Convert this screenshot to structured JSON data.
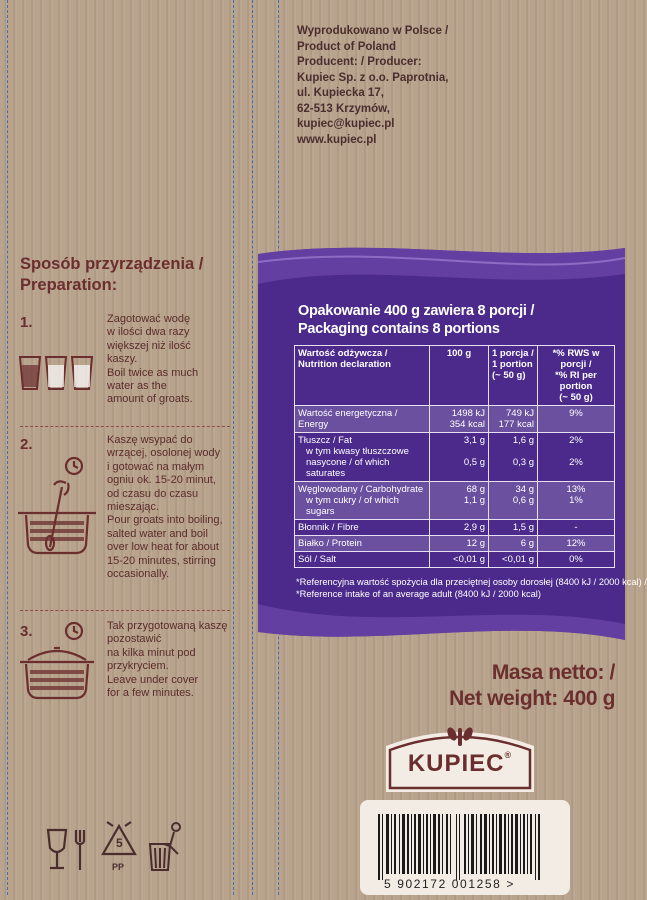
{
  "producer": {
    "lines": [
      "Wyprodukowano w Polsce /",
      "Product of Poland",
      "Producent: / Producer:",
      "Kupiec Sp. z o.o. Paprotnia,",
      "ul. Kupiecka 17,",
      "62-513 Krzymów,",
      "kupiec@kupiec.pl",
      "www.kupiec.pl"
    ]
  },
  "preparation": {
    "title_pl": "Sposób przyrządzenia /",
    "title_en": "Preparation:",
    "steps": [
      {
        "number": "1.",
        "text_pl": [
          "Zagotować wodę",
          "w ilości dwa razy",
          "większej niż ilość",
          "kaszy."
        ],
        "text_en": [
          "Boil twice as much",
          "water as the",
          "amount of groats."
        ],
        "icon": "three-glasses-icon"
      },
      {
        "number": "2.",
        "text_pl": [
          "Kaszę wsypać do",
          "wrzącej, osolonej wody",
          "i gotować na małym",
          "ogniu ok. 15-20 minut,",
          "od czasu do czasu",
          "mieszając."
        ],
        "text_en": [
          "Pour groats into boiling,",
          "salted water and boil",
          "over low heat for about",
          "15-20 minutes, stirring",
          "occasionally."
        ],
        "icon": "pot-stirring-icon"
      },
      {
        "number": "3.",
        "text_pl": [
          "Tak przygotowaną kaszę",
          "pozostawić",
          "na kilka minut pod",
          "przykryciem."
        ],
        "text_en": [
          "Leave under cover",
          "for a few minutes."
        ],
        "icon": "covered-pot-icon"
      }
    ]
  },
  "nutrition": {
    "title_line1": "Opakowanie 400 g zawiera 8 porcji  /",
    "title_line2": "Packaging contains 8 portions",
    "headers": {
      "col1": [
        "Wartość odżywcza /",
        "Nutrition declaration"
      ],
      "col2": [
        "100 g"
      ],
      "col3": [
        "1 porcja /",
        "1 portion",
        "(~ 50 g)"
      ],
      "col4": [
        "*% RWS w porcji /",
        "*% RI per portion",
        "(~ 50 g)"
      ]
    },
    "rows": [
      {
        "label": [
          "Wartość energetyczna /",
          "Energy"
        ],
        "v100": [
          "1498 kJ",
          "354 kcal"
        ],
        "vpor": [
          "749 kJ",
          "177 kcal"
        ],
        "ri": [
          "9%"
        ]
      },
      {
        "label": [
          "Tłuszcz / Fat",
          "w tym kwasy tłuszczowe",
          "nasycone / of which saturates"
        ],
        "v100": [
          "3,1 g",
          "",
          "0,5 g"
        ],
        "vpor": [
          "1,6 g",
          "",
          "0,3 g"
        ],
        "ri": [
          "2%",
          "",
          "2%"
        ]
      },
      {
        "label": [
          "Węglowodany / Carbohydrate",
          "w tym cukry / of which sugars"
        ],
        "v100": [
          "68 g",
          "1,1 g"
        ],
        "vpor": [
          "34 g",
          "0,6 g"
        ],
        "ri": [
          "13%",
          "1%"
        ]
      },
      {
        "label": [
          "Błonnik / Fibre"
        ],
        "v100": [
          "2,9 g"
        ],
        "vpor": [
          "1,5 g"
        ],
        "ri": [
          "-"
        ]
      },
      {
        "label": [
          "Białko / Protein"
        ],
        "v100": [
          "12 g"
        ],
        "vpor": [
          "6 g"
        ],
        "ri": [
          "12%"
        ]
      },
      {
        "label": [
          "Sól / Salt"
        ],
        "v100": [
          "<0,01 g"
        ],
        "vpor": [
          "<0,01 g"
        ],
        "ri": [
          "0%"
        ]
      }
    ],
    "footnote_pl": "*Referencyjna wartość spożycia dla przeciętnej osoby dorosłej (8400 kJ / 2000 kcal) /",
    "footnote_en": "*Reference intake of an average adult (8400 kJ / 2000 kcal)"
  },
  "net_weight": {
    "line1": "Masa netto: /",
    "line2": "Net weight: 400 g"
  },
  "logo": {
    "brand": "KUPIEC",
    "registered": "®"
  },
  "recycle": {
    "code": "5",
    "material": "PP"
  },
  "barcode": {
    "digits": "5  902172  001258  >"
  },
  "colors": {
    "brand_maroon": "#6b2e2e",
    "panel_purple": "#4b2a8c",
    "cardboard": "#b49f8a",
    "guide_blue": "#3a6fb5"
  }
}
